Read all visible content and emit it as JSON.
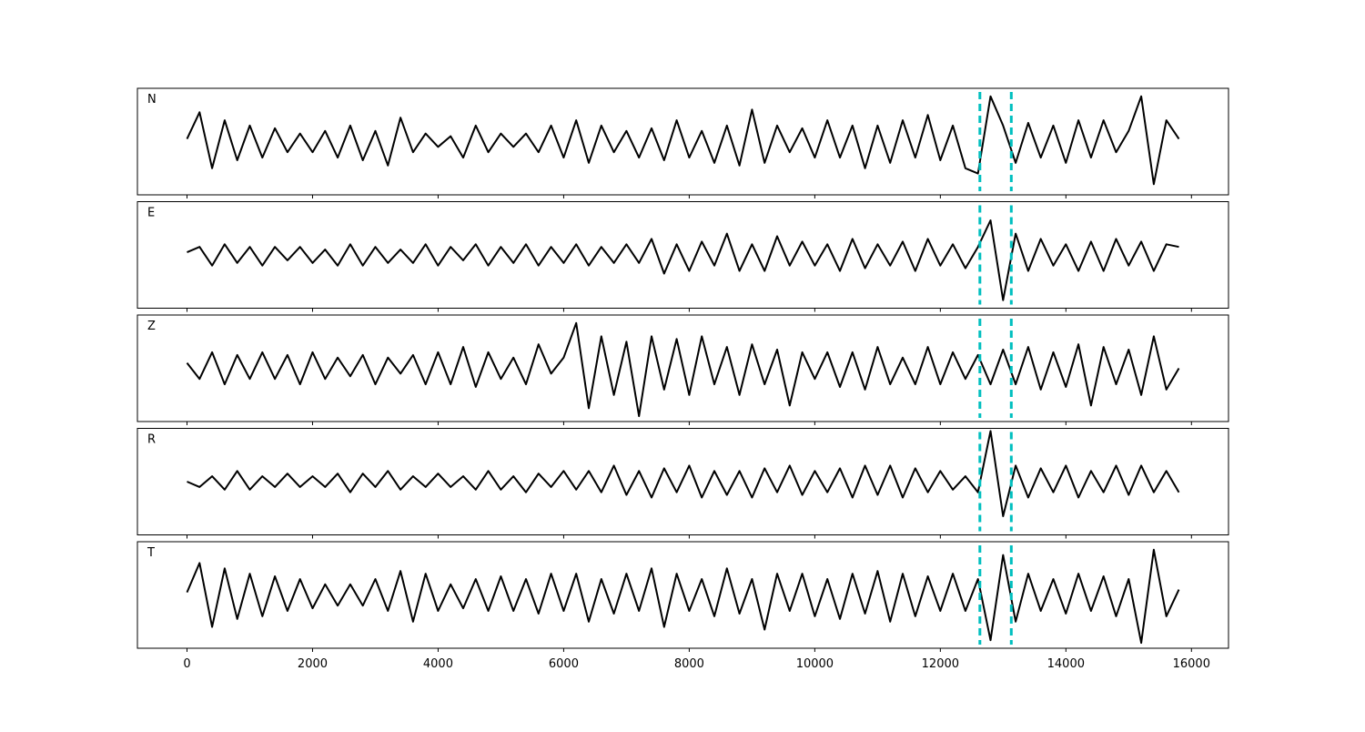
{
  "chart_data": {
    "type": "line",
    "x": [
      0,
      200,
      400,
      600,
      800,
      1000,
      1200,
      1400,
      1600,
      1800,
      2000,
      2200,
      2400,
      2600,
      2800,
      3000,
      3200,
      3400,
      3600,
      3800,
      4000,
      4200,
      4400,
      4600,
      4800,
      5000,
      5200,
      5400,
      5600,
      5800,
      6000,
      6200,
      6400,
      6600,
      6800,
      7000,
      7200,
      7400,
      7600,
      7800,
      8000,
      8200,
      8400,
      8600,
      8800,
      9000,
      9200,
      9400,
      9600,
      9800,
      10000,
      10200,
      10400,
      10600,
      10800,
      11000,
      11200,
      11400,
      11600,
      11800,
      12000,
      12200,
      12400,
      12600,
      12800,
      13000,
      13200,
      13400,
      13600,
      13800,
      14000,
      14200,
      14400,
      14600,
      14800,
      15000,
      15200,
      15400,
      15600,
      15800
    ],
    "xlim": [
      -790,
      16590
    ],
    "xticks": [
      0,
      2000,
      4000,
      6000,
      8000,
      10000,
      12000,
      14000,
      16000
    ],
    "ylim": [
      -1,
      1
    ],
    "series": [
      {
        "name": "N",
        "color": "#000000",
        "values": [
          0.05,
          0.55,
          -0.5,
          0.4,
          -0.35,
          0.3,
          -0.3,
          0.25,
          -0.2,
          0.15,
          -0.2,
          0.2,
          -0.3,
          0.3,
          -0.35,
          0.2,
          -0.45,
          0.45,
          -0.2,
          0.15,
          -0.1,
          0.1,
          -0.3,
          0.3,
          -0.2,
          0.15,
          -0.1,
          0.15,
          -0.2,
          0.3,
          -0.3,
          0.4,
          -0.4,
          0.3,
          -0.2,
          0.2,
          -0.3,
          0.25,
          -0.35,
          0.4,
          -0.3,
          0.2,
          -0.4,
          0.3,
          -0.45,
          0.6,
          -0.4,
          0.3,
          -0.2,
          0.25,
          -0.3,
          0.4,
          -0.3,
          0.3,
          -0.5,
          0.3,
          -0.4,
          0.4,
          -0.3,
          0.5,
          -0.35,
          0.3,
          -0.5,
          -0.6,
          0.85,
          0.3,
          -0.4,
          0.35,
          -0.3,
          0.3,
          -0.4,
          0.4,
          -0.3,
          0.4,
          -0.2,
          0.2,
          0.85,
          -0.8,
          0.4,
          0.05
        ]
      },
      {
        "name": "E",
        "color": "#000000",
        "values": [
          0.05,
          0.15,
          -0.2,
          0.2,
          -0.15,
          0.15,
          -0.2,
          0.15,
          -0.1,
          0.15,
          -0.15,
          0.1,
          -0.2,
          0.2,
          -0.2,
          0.15,
          -0.15,
          0.1,
          -0.15,
          0.2,
          -0.2,
          0.15,
          -0.1,
          0.2,
          -0.2,
          0.15,
          -0.15,
          0.2,
          -0.2,
          0.15,
          -0.15,
          0.2,
          -0.2,
          0.15,
          -0.15,
          0.2,
          -0.15,
          0.3,
          -0.35,
          0.2,
          -0.3,
          0.25,
          -0.2,
          0.4,
          -0.3,
          0.2,
          -0.3,
          0.35,
          -0.2,
          0.25,
          -0.2,
          0.2,
          -0.3,
          0.3,
          -0.25,
          0.2,
          -0.2,
          0.25,
          -0.3,
          0.3,
          -0.2,
          0.2,
          -0.25,
          0.15,
          0.65,
          -0.85,
          0.4,
          -0.3,
          0.3,
          -0.2,
          0.2,
          -0.3,
          0.25,
          -0.3,
          0.3,
          -0.2,
          0.25,
          -0.3,
          0.2,
          0.15
        ]
      },
      {
        "name": "Z",
        "color": "#000000",
        "values": [
          0.1,
          -0.2,
          0.3,
          -0.3,
          0.25,
          -0.2,
          0.3,
          -0.2,
          0.25,
          -0.3,
          0.3,
          -0.2,
          0.2,
          -0.15,
          0.25,
          -0.3,
          0.2,
          -0.1,
          0.25,
          -0.3,
          0.3,
          -0.3,
          0.4,
          -0.35,
          0.3,
          -0.2,
          0.2,
          -0.3,
          0.45,
          -0.1,
          0.2,
          0.85,
          -0.75,
          0.6,
          -0.5,
          0.5,
          -0.9,
          0.6,
          -0.4,
          0.55,
          -0.5,
          0.6,
          -0.3,
          0.4,
          -0.5,
          0.45,
          -0.3,
          0.35,
          -0.7,
          0.3,
          -0.2,
          0.3,
          -0.35,
          0.3,
          -0.4,
          0.4,
          -0.3,
          0.2,
          -0.3,
          0.4,
          -0.3,
          0.3,
          -0.2,
          0.25,
          -0.3,
          0.35,
          -0.3,
          0.4,
          -0.4,
          0.3,
          -0.35,
          0.45,
          -0.7,
          0.4,
          -0.3,
          0.35,
          -0.5,
          0.6,
          -0.4,
          0.0
        ]
      },
      {
        "name": "R",
        "color": "#000000",
        "values": [
          0.0,
          -0.1,
          0.1,
          -0.15,
          0.2,
          -0.15,
          0.1,
          -0.1,
          0.15,
          -0.1,
          0.1,
          -0.1,
          0.15,
          -0.2,
          0.15,
          -0.1,
          0.2,
          -0.15,
          0.1,
          -0.1,
          0.15,
          -0.1,
          0.1,
          -0.15,
          0.2,
          -0.15,
          0.1,
          -0.2,
          0.15,
          -0.1,
          0.2,
          -0.15,
          0.2,
          -0.2,
          0.3,
          -0.25,
          0.2,
          -0.3,
          0.25,
          -0.2,
          0.3,
          -0.3,
          0.2,
          -0.25,
          0.2,
          -0.3,
          0.25,
          -0.2,
          0.3,
          -0.25,
          0.2,
          -0.2,
          0.25,
          -0.3,
          0.3,
          -0.25,
          0.3,
          -0.3,
          0.25,
          -0.2,
          0.2,
          -0.15,
          0.1,
          -0.2,
          0.95,
          -0.65,
          0.3,
          -0.3,
          0.25,
          -0.2,
          0.3,
          -0.3,
          0.2,
          -0.2,
          0.3,
          -0.25,
          0.3,
          -0.2,
          0.2,
          -0.2
        ]
      },
      {
        "name": "T",
        "color": "#000000",
        "values": [
          0.05,
          0.6,
          -0.6,
          0.5,
          -0.45,
          0.4,
          -0.4,
          0.35,
          -0.3,
          0.3,
          -0.25,
          0.2,
          -0.2,
          0.2,
          -0.2,
          0.3,
          -0.3,
          0.45,
          -0.5,
          0.4,
          -0.3,
          0.2,
          -0.25,
          0.3,
          -0.3,
          0.35,
          -0.3,
          0.3,
          -0.35,
          0.4,
          -0.3,
          0.4,
          -0.5,
          0.3,
          -0.35,
          0.4,
          -0.3,
          0.5,
          -0.6,
          0.4,
          -0.3,
          0.3,
          -0.4,
          0.5,
          -0.35,
          0.3,
          -0.65,
          0.4,
          -0.3,
          0.4,
          -0.4,
          0.3,
          -0.45,
          0.4,
          -0.35,
          0.45,
          -0.5,
          0.4,
          -0.4,
          0.35,
          -0.3,
          0.4,
          -0.3,
          0.3,
          -0.85,
          0.75,
          -0.5,
          0.4,
          -0.3,
          0.3,
          -0.35,
          0.4,
          -0.3,
          0.35,
          -0.4,
          0.3,
          -0.9,
          0.85,
          -0.4,
          0.1
        ]
      }
    ],
    "markers": {
      "values": [
        12630,
        13130
      ],
      "color": "#00bfbf"
    }
  }
}
